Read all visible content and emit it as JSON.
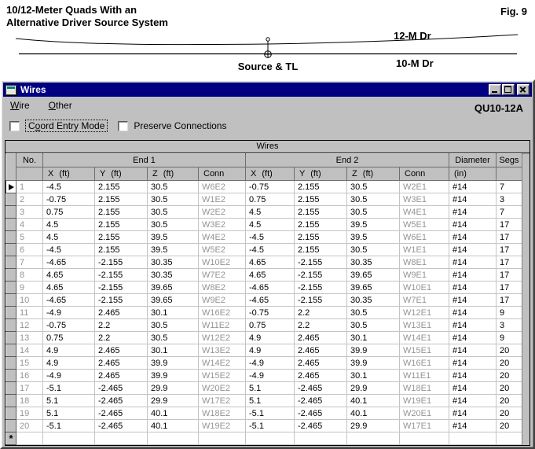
{
  "page": {
    "title_line1": "10/12-Meter Quads With an",
    "title_line2": "Alternative Driver Source System",
    "fig_label": "Fig. 9"
  },
  "diagram": {
    "label_12m_driver": "12-M Dr",
    "label_10m_driver": "10-M Dr",
    "label_source": "Source & TL"
  },
  "window": {
    "title": "Wires",
    "model_label": "QU10-12A",
    "menu": [
      {
        "accel": "W",
        "rest": "ire"
      },
      {
        "accel": "O",
        "rest": "ther"
      }
    ],
    "checkboxes": [
      {
        "pre": "C",
        "accel": "o",
        "rest": "ord Entry Mode",
        "checked": false
      },
      {
        "pre": "",
        "accel": "",
        "rest": "Preserve Connections",
        "checked": false
      }
    ]
  },
  "grid": {
    "title": "Wires",
    "group_headers": {
      "no": "No.",
      "end1": "End 1",
      "end2": "End 2",
      "diameter": "Diameter",
      "segs": "Segs"
    },
    "sub_headers": {
      "x": "X (ft)",
      "y": "Y (ft)",
      "z": "Z (ft)",
      "conn": "Conn",
      "in": "(in)"
    },
    "col_keys": [
      "no",
      "end1-x",
      "end1-y",
      "end1-z",
      "end1-conn",
      "end2-x",
      "end2-y",
      "end2-z",
      "end2-conn",
      "diameter",
      "segs"
    ],
    "dim_columns": [
      0,
      4,
      8
    ],
    "current_row_index": 0,
    "new_row_marker": "*",
    "rows": [
      [
        "1",
        "-4.5",
        "2.155",
        "30.5",
        "W6E2",
        "-0.75",
        "2.155",
        "30.5",
        "W2E1",
        "#14",
        "7"
      ],
      [
        "2",
        "-0.75",
        "2.155",
        "30.5",
        "W1E2",
        "0.75",
        "2.155",
        "30.5",
        "W3E1",
        "#14",
        "3"
      ],
      [
        "3",
        "0.75",
        "2.155",
        "30.5",
        "W2E2",
        "4.5",
        "2.155",
        "30.5",
        "W4E1",
        "#14",
        "7"
      ],
      [
        "4",
        "4.5",
        "2.155",
        "30.5",
        "W3E2",
        "4.5",
        "2.155",
        "39.5",
        "W5E1",
        "#14",
        "17"
      ],
      [
        "5",
        "4.5",
        "2.155",
        "39.5",
        "W4E2",
        "-4.5",
        "2.155",
        "39.5",
        "W6E1",
        "#14",
        "17"
      ],
      [
        "6",
        "-4.5",
        "2.155",
        "39.5",
        "W5E2",
        "-4.5",
        "2.155",
        "30.5",
        "W1E1",
        "#14",
        "17"
      ],
      [
        "7",
        "-4.65",
        "-2.155",
        "30.35",
        "W10E2",
        "4.65",
        "-2.155",
        "30.35",
        "W8E1",
        "#14",
        "17"
      ],
      [
        "8",
        "4.65",
        "-2.155",
        "30.35",
        "W7E2",
        "4.65",
        "-2.155",
        "39.65",
        "W9E1",
        "#14",
        "17"
      ],
      [
        "9",
        "4.65",
        "-2.155",
        "39.65",
        "W8E2",
        "-4.65",
        "-2.155",
        "39.65",
        "W10E1",
        "#14",
        "17"
      ],
      [
        "10",
        "-4.65",
        "-2.155",
        "39.65",
        "W9E2",
        "-4.65",
        "-2.155",
        "30.35",
        "W7E1",
        "#14",
        "17"
      ],
      [
        "11",
        "-4.9",
        "2.465",
        "30.1",
        "W16E2",
        "-0.75",
        "2.2",
        "30.5",
        "W12E1",
        "#14",
        "9"
      ],
      [
        "12",
        "-0.75",
        "2.2",
        "30.5",
        "W11E2",
        "0.75",
        "2.2",
        "30.5",
        "W13E1",
        "#14",
        "3"
      ],
      [
        "13",
        "0.75",
        "2.2",
        "30.5",
        "W12E2",
        "4.9",
        "2.465",
        "30.1",
        "W14E1",
        "#14",
        "9"
      ],
      [
        "14",
        "4.9",
        "2.465",
        "30.1",
        "W13E2",
        "4.9",
        "2.465",
        "39.9",
        "W15E1",
        "#14",
        "20"
      ],
      [
        "15",
        "4.9",
        "2.465",
        "39.9",
        "W14E2",
        "-4.9",
        "2.465",
        "39.9",
        "W16E1",
        "#14",
        "20"
      ],
      [
        "16",
        "-4.9",
        "2.465",
        "39.9",
        "W15E2",
        "-4.9",
        "2.465",
        "30.1",
        "W11E1",
        "#14",
        "20"
      ],
      [
        "17",
        "-5.1",
        "-2.465",
        "29.9",
        "W20E2",
        "5.1",
        "-2.465",
        "29.9",
        "W18E1",
        "#14",
        "20"
      ],
      [
        "18",
        "5.1",
        "-2.465",
        "29.9",
        "W17E2",
        "5.1",
        "-2.465",
        "40.1",
        "W19E1",
        "#14",
        "20"
      ],
      [
        "19",
        "5.1",
        "-2.465",
        "40.1",
        "W18E2",
        "-5.1",
        "-2.465",
        "40.1",
        "W20E1",
        "#14",
        "20"
      ],
      [
        "20",
        "-5.1",
        "-2.465",
        "40.1",
        "W19E2",
        "-5.1",
        "-2.465",
        "29.9",
        "W17E1",
        "#14",
        "20"
      ]
    ]
  }
}
